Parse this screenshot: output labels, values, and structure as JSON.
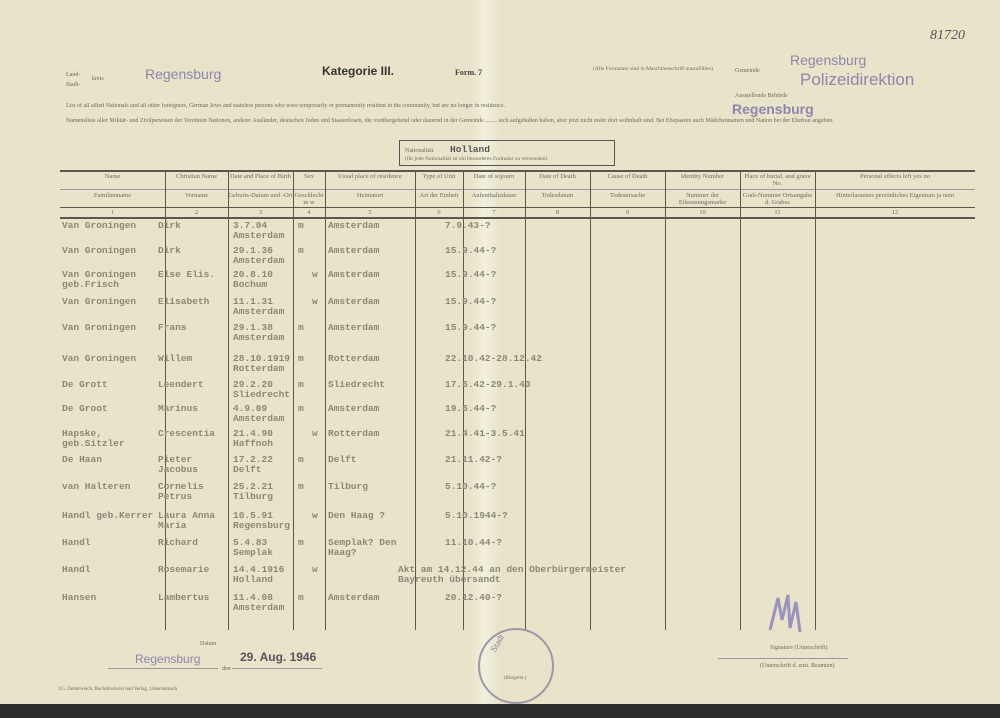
{
  "document": {
    "archive_number": "81720",
    "landkreis_label": "Land-",
    "kreis_label": "kreis",
    "stadt_label": "Stadt-",
    "kreis_value": "Regensburg",
    "category": "Kategorie III.",
    "form": "Form. 7",
    "form_note": "(Alle Formulare sind in Maschinenschrift auszufüllen)",
    "gemeinde_label": "Gemeinde",
    "gemeinde_value": "Regensburg",
    "authority_label": "Ausstellende Behörde",
    "authority_value": "Polizeidirektion",
    "authority_city": "Regensburg",
    "intro_en": "List of all allied Nationals and all other foreigners, German Jews and stateless persons who were temporarily or permanently resident in the community, but are no longer in residence.",
    "intro_de": "Namensliste aller Militär- und Zivilpersonen der Vereinten Nationen, anderer Ausländer, deutschen Juden und Staatenlosen, die vorübergehend oder dauernd in der Gemeinde ........ sich aufgehalten haben, aber jetzt nicht mehr dort wohnhaft sind. Bei Ehepaaren auch Mädchennamen und Nation bei der Ehefrau angeben.",
    "nationality_label": "Nationalität",
    "nationality_value": "Holland",
    "nationality_note": "(für jede Nationalität ist ein besonderes Formular zu verwenden)"
  },
  "columns": [
    {
      "en": "Name",
      "de": "Familienname",
      "no": "1"
    },
    {
      "en": "Christian Name",
      "de": "Vorname",
      "no": "2"
    },
    {
      "en": "Date and Place of Birth",
      "de": "Geburts-Datum und -Ort",
      "no": "3"
    },
    {
      "en": "Sex",
      "de": "Geschlecht m   w",
      "no": "4"
    },
    {
      "en": "Usual place of residence",
      "de": "Heimatort",
      "no": "5"
    },
    {
      "en": "Type of Unit",
      "de": "Art der Einheit",
      "no": "6"
    },
    {
      "en": "Date of sojourn",
      "de": "Aufenthaltsdauer",
      "no": "7"
    },
    {
      "en": "Date of Death",
      "de": "Todesdatum",
      "no": "8"
    },
    {
      "en": "Cause of Death",
      "de": "Todesursache",
      "no": "9"
    },
    {
      "en": "Identity Number",
      "de": "Nummer der Erkennungsmarke",
      "no": "10"
    },
    {
      "en": "Place of burial, and grave No.",
      "de": "Grab-Nummer Ortsangabe d. Grabes",
      "no": "11"
    },
    {
      "en": "Personal effects left yes   no",
      "de": "Hinterlassenes persönliches Eigentum ja   nein",
      "no": "12"
    }
  ],
  "rows": [
    {
      "name": "Van Groningen",
      "first": "Dirk",
      "birth": "3.7.04",
      "place": "Amsterdam",
      "sex": "m",
      "res": "Amsterdam",
      "stay": "7.9.43-?"
    },
    {
      "name": "Van Groningen",
      "first": "Dirk",
      "birth": "29.1.36",
      "place": "Amsterdam",
      "sex": "m",
      "res": "Amsterdam",
      "stay": "15.9.44-?"
    },
    {
      "name": "Van Groningen geb.Frisch",
      "first": "Else Elis.",
      "birth": "20.8.10",
      "place": "Bochum",
      "sex": "w",
      "res": "Amsterdam",
      "stay": "15.9.44-?"
    },
    {
      "name": "Van Groningen",
      "first": "Elisabeth",
      "birth": "11.1.31",
      "place": "Amsterdam",
      "sex": "w",
      "res": "Amsterdam",
      "stay": "15.9.44-?"
    },
    {
      "name": "Van Groningen",
      "first": "Frans",
      "birth": "29.1.38",
      "place": "Amsterdam",
      "sex": "m",
      "res": "Amsterdam",
      "stay": "15.9.44-?"
    },
    {
      "name": "Van Groningen",
      "first": "Willem",
      "birth": "28.10.1919",
      "place": "Rotterdam",
      "sex": "m",
      "res": "Rotterdam",
      "stay": "22.10.42-28.12.42"
    },
    {
      "name": "De Grott",
      "first": "Leendert",
      "birth": "29.2.20",
      "place": "Sliedrecht",
      "sex": "m",
      "res": "Sliedrecht",
      "stay": "17.6.42-29.1.43"
    },
    {
      "name": "De Groot",
      "first": "Marinus",
      "birth": "4.9.09",
      "place": "Amsterdam",
      "sex": "m",
      "res": "Amsterdam",
      "stay": "19.6.44-?"
    },
    {
      "name": "Hapske, geb.Sitzler",
      "first": "Crescentia",
      "birth": "21.4.90",
      "place": "Haffnoh",
      "sex": "w",
      "res": "Rotterdam",
      "stay": "21.4.41-3.5.41"
    },
    {
      "name": "De Haan",
      "first": "Pieter Jacobus",
      "birth": "17.2.22",
      "place": "Delft",
      "sex": "m",
      "res": "Delft",
      "stay": "21.11.42-?"
    },
    {
      "name": "van Halteren",
      "first": "Cornelis Petrus",
      "birth": "25.2.21",
      "place": "Tilburg",
      "sex": "m",
      "res": "Tilburg",
      "stay": "5.10.44-?"
    },
    {
      "name": "Handl geb.Kerrer",
      "first": "Laura Anna Maria",
      "birth": "10.5.91",
      "place": "Regensburg",
      "sex": "w",
      "res": "Den Haag ?",
      "stay": "5.10.1944-?"
    },
    {
      "name": "Handl",
      "first": "Richard",
      "birth": "5.4.83",
      "place": "Semplak",
      "sex": "m",
      "res": "Semplak? Den Haag?",
      "stay": "11.10.44-?"
    },
    {
      "name": "Handl",
      "first": "Rosemarie",
      "birth": "14.4.1916",
      "place": "Holland",
      "sex": "w",
      "res": "",
      "stay": "Akt am 14.12.44 an den Oberbürgermeister Bayreuth übersandt"
    },
    {
      "name": "Hansen",
      "first": "Lambertus",
      "birth": "11.4.08",
      "place": "Amsterdam",
      "sex": "m",
      "res": "Amsterdam",
      "stay": "20.12.40-?"
    }
  ],
  "footer": {
    "place_label": "Datum",
    "place_value": "Regensburg",
    "date_label": "den",
    "date_value": "29. Aug. 1946",
    "signature_label": "Signature (Unterschrift)",
    "official_label": "(Unterschrift d. zust. Beamten)",
    "stamp_text": "Stadt",
    "stamp_inner": "(Bürgerm.)",
    "printer": "J.G. Dotterweich, Buchdruckerei und Verlag, Untersteinach"
  },
  "colors": {
    "paper": "#e8e3c9",
    "stamp": "#8d86ad",
    "typewriter": "#8c8876"
  }
}
